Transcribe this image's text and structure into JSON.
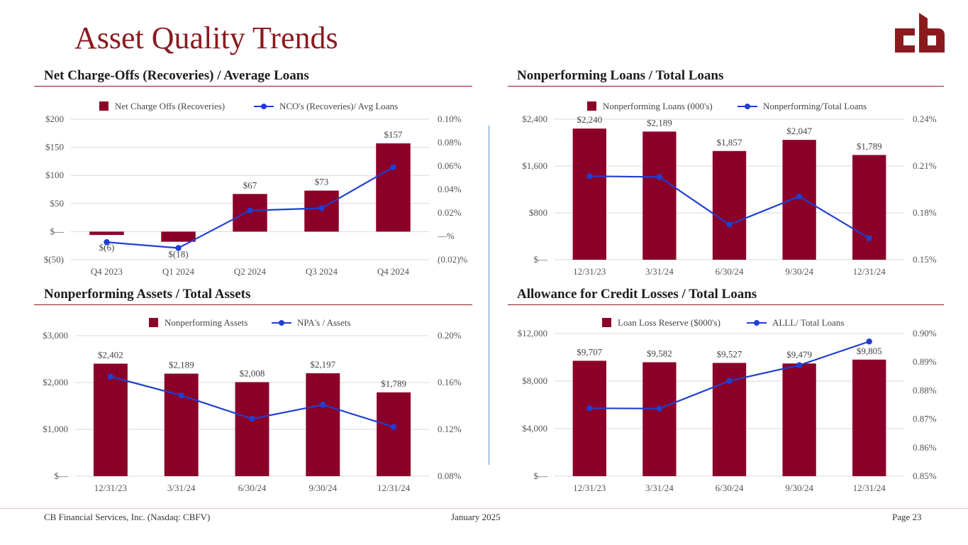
{
  "page": {
    "title": "Asset Quality Trends",
    "footer_left": "CB Financial Services, Inc. (Nasdaq: CBFV)",
    "footer_center": "January 2025",
    "footer_right": "Page 23"
  },
  "colors": {
    "bar": "#8b0028",
    "line": "#1f3fd1",
    "accent": "#8b1a1f",
    "grid": "#d9d9d9"
  },
  "logo": {
    "text": "cb",
    "icon": "cb-logo"
  },
  "chart_data": [
    {
      "id": "nco",
      "type": "bar+line",
      "title": "Net Charge-Offs (Recoveries) / Average Loans",
      "legend": [
        "Net Charge Offs (Recoveries)",
        "NCO's (Recoveries)/ Avg Loans"
      ],
      "categories": [
        "Q4 2023",
        "Q1 2024",
        "Q2 2024",
        "Q3 2024",
        "Q4 2024"
      ],
      "bar_values": [
        -6,
        -18,
        67,
        73,
        157
      ],
      "bar_labels": [
        "$(6)",
        "$(18)",
        "$67",
        "$73",
        "$157"
      ],
      "line_values": [
        -0.005,
        -0.01,
        0.022,
        0.024,
        0.059
      ],
      "ylim": [
        -50,
        200
      ],
      "y_ticks": [
        -50,
        0,
        50,
        100,
        150,
        200
      ],
      "y_tick_labels": [
        "$(50)",
        "$—",
        "$50",
        "$100",
        "$150",
        "$200"
      ],
      "y2lim": [
        -0.02,
        0.1
      ],
      "y2_ticks": [
        -0.02,
        0,
        0.02,
        0.04,
        0.06,
        0.08,
        0.1
      ],
      "y2_tick_labels": [
        "(0.02)%",
        "—%",
        "0.02%",
        "0.04%",
        "0.06%",
        "0.08%",
        "0.10%"
      ]
    },
    {
      "id": "npl",
      "type": "bar+line",
      "title": "Nonperforming Loans / Total Loans",
      "legend": [
        "Nonperforming Loans (000's)",
        "Nonperforming/Total Loans"
      ],
      "categories": [
        "12/31/23",
        "3/31/24",
        "6/30/24",
        "9/30/24",
        "12/31/24"
      ],
      "bar_values": [
        2240,
        2189,
        1857,
        2047,
        1789
      ],
      "bar_labels": [
        "$2,240",
        "$2,189",
        "$1,857",
        "$2,047",
        "$1,789"
      ],
      "line_values": [
        0.2035,
        0.203,
        0.1725,
        0.1905,
        0.1638
      ],
      "ylim": [
        0,
        2400
      ],
      "y_ticks": [
        0,
        800,
        1600,
        2400
      ],
      "y_tick_labels": [
        "$—",
        "$800",
        "$1,600",
        "$2,400"
      ],
      "y2lim": [
        0.15,
        0.24
      ],
      "y2_ticks": [
        0.15,
        0.18,
        0.21,
        0.24
      ],
      "y2_tick_labels": [
        "0.15%",
        "0.18%",
        "0.21%",
        "0.24%"
      ]
    },
    {
      "id": "npa",
      "type": "bar+line",
      "title": "Nonperforming Assets / Total Assets",
      "legend": [
        "Nonperforming Assets",
        "NPA's / Assets"
      ],
      "categories": [
        "12/31/23",
        "3/31/24",
        "6/30/24",
        "9/30/24",
        "12/31/24"
      ],
      "bar_values": [
        2402,
        2189,
        2008,
        2197,
        1789
      ],
      "bar_labels": [
        "$2,402",
        "$2,189",
        "$2,008",
        "$2,197",
        "$1,789"
      ],
      "line_values": [
        0.165,
        0.149,
        0.129,
        0.141,
        0.122
      ],
      "ylim": [
        0,
        3000
      ],
      "y_ticks": [
        0,
        1000,
        2000,
        3000
      ],
      "y_tick_labels": [
        "$—",
        "$1,000",
        "$2,000",
        "$3,000"
      ],
      "y2lim": [
        0.08,
        0.2
      ],
      "y2_ticks": [
        0.08,
        0.12,
        0.16,
        0.2
      ],
      "y2_tick_labels": [
        "0.08%",
        "0.12%",
        "0.16%",
        "0.20%"
      ]
    },
    {
      "id": "acl",
      "type": "bar+line",
      "title": "Allowance for Credit Losses / Total Loans",
      "legend": [
        "Loan Loss Reserve ($000's)",
        "ALLL/ Total Loans"
      ],
      "categories": [
        "12/31/23",
        "3/31/24",
        "6/30/24",
        "9/30/24",
        "12/31/24"
      ],
      "bar_values": [
        9707,
        9582,
        9527,
        9479,
        9805
      ],
      "bar_labels": [
        "$9,707",
        "$9,582",
        "$9,527",
        "$9,479",
        "$9,805"
      ],
      "line_values": [
        0.8738,
        0.8737,
        0.8834,
        0.8889,
        0.8972
      ],
      "ylim": [
        0,
        12000
      ],
      "y_ticks": [
        0,
        4000,
        8000,
        12000
      ],
      "y_tick_labels": [
        "$—",
        "$4,000",
        "$8,000",
        "$12,000"
      ],
      "y2lim": [
        0.85,
        0.9
      ],
      "y2_ticks": [
        0.85,
        0.86,
        0.87,
        0.88,
        0.89,
        0.9
      ],
      "y2_tick_labels": [
        "0.85%",
        "0.86%",
        "0.87%",
        "0.88%",
        "0.89%",
        "0.90%"
      ]
    }
  ]
}
